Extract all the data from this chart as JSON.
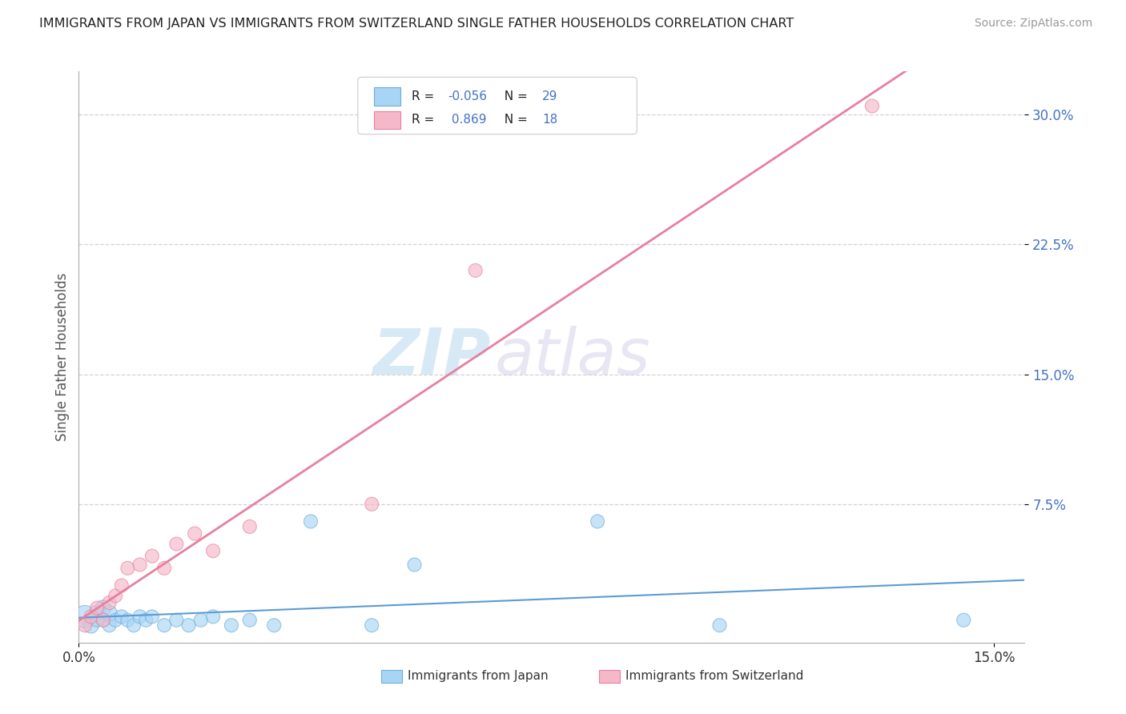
{
  "title": "IMMIGRANTS FROM JAPAN VS IMMIGRANTS FROM SWITZERLAND SINGLE FATHER HOUSEHOLDS CORRELATION CHART",
  "source": "Source: ZipAtlas.com",
  "ylabel": "Single Father Households",
  "xlim": [
    0.0,
    0.155
  ],
  "ylim": [
    -0.005,
    0.325
  ],
  "xtick_positions": [
    0.0,
    0.15
  ],
  "xtick_labels": [
    "0.0%",
    "15.0%"
  ],
  "ytick_positions": [
    0.075,
    0.15,
    0.225,
    0.3
  ],
  "ytick_labels": [
    "7.5%",
    "15.0%",
    "22.5%",
    "30.0%"
  ],
  "japan_color": "#a8d4f5",
  "japan_edge": "#6baed6",
  "switzerland_color": "#f5b8c8",
  "switzerland_edge": "#e87fa0",
  "japan_line_color": "#5b9bd5",
  "switzerland_line_color": "#e87fa0",
  "japan_r": "-0.056",
  "japan_n": "29",
  "switzerland_r": "0.869",
  "switzerland_n": "18",
  "watermark_zip": "ZIP",
  "watermark_atlas": "atlas",
  "background_color": "#ffffff",
  "grid_color": "#c8c8c8",
  "japan_x": [
    0.001,
    0.002,
    0.003,
    0.003,
    0.004,
    0.004,
    0.005,
    0.005,
    0.006,
    0.007,
    0.008,
    0.009,
    0.01,
    0.011,
    0.012,
    0.014,
    0.016,
    0.018,
    0.02,
    0.022,
    0.025,
    0.028,
    0.032,
    0.038,
    0.048,
    0.055,
    0.085,
    0.105,
    0.145
  ],
  "japan_y": [
    0.01,
    0.005,
    0.008,
    0.012,
    0.008,
    0.015,
    0.005,
    0.012,
    0.008,
    0.01,
    0.008,
    0.005,
    0.01,
    0.008,
    0.01,
    0.005,
    0.008,
    0.005,
    0.008,
    0.01,
    0.005,
    0.008,
    0.005,
    0.065,
    0.005,
    0.04,
    0.065,
    0.005,
    0.008
  ],
  "japan_size": [
    400,
    200,
    150,
    200,
    150,
    200,
    150,
    200,
    150,
    150,
    150,
    150,
    150,
    150,
    150,
    150,
    150,
    150,
    150,
    150,
    150,
    150,
    150,
    150,
    150,
    150,
    150,
    150,
    150
  ],
  "switzerland_x": [
    0.001,
    0.002,
    0.003,
    0.004,
    0.005,
    0.006,
    0.007,
    0.008,
    0.01,
    0.012,
    0.014,
    0.016,
    0.019,
    0.022,
    0.028,
    0.048,
    0.065,
    0.13
  ],
  "switzerland_y": [
    0.005,
    0.01,
    0.015,
    0.008,
    0.018,
    0.022,
    0.028,
    0.038,
    0.04,
    0.045,
    0.038,
    0.052,
    0.058,
    0.048,
    0.062,
    0.075,
    0.21,
    0.305
  ],
  "switzerland_size": [
    150,
    150,
    150,
    150,
    150,
    150,
    150,
    150,
    150,
    150,
    150,
    150,
    150,
    150,
    150,
    150,
    150,
    150
  ],
  "legend_japan_label": "Immigrants from Japan",
  "legend_sw_label": "Immigrants from Switzerland"
}
